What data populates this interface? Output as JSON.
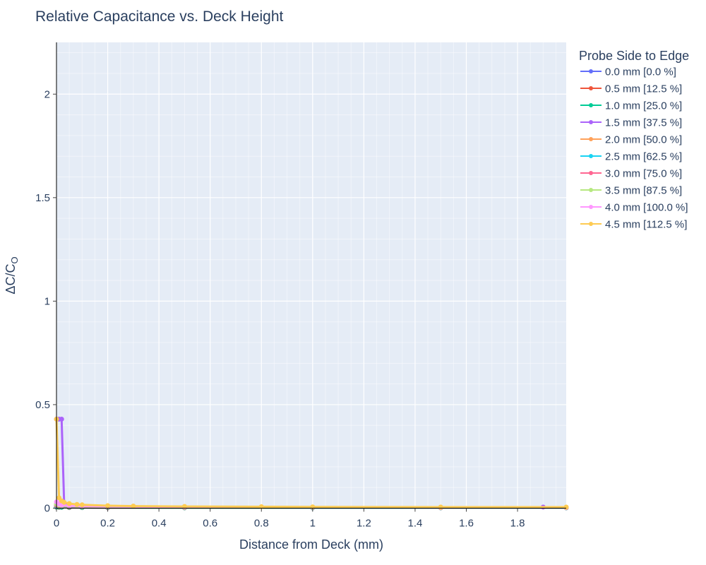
{
  "chart_data": {
    "type": "line",
    "title": "Relative Capacitance vs. Deck Height",
    "xlabel": "Distance from Deck (mm)",
    "ylabel": "ΔC/C",
    "ylabel_subscript": "O",
    "xlim": [
      0,
      1.99
    ],
    "ylim": [
      0,
      2.25
    ],
    "x_ticks": [
      0,
      0.2,
      0.4,
      0.6,
      0.8,
      1,
      1.2,
      1.4,
      1.6,
      1.8
    ],
    "x_tick_labels": [
      "0",
      "0.2",
      "0.4",
      "0.6",
      "0.8",
      "1",
      "1.2",
      "1.4",
      "1.6",
      "1.8"
    ],
    "y_ticks": [
      0,
      0.5,
      1,
      1.5,
      2
    ],
    "y_tick_labels": [
      "0",
      "0.5",
      "1",
      "1.5",
      "2"
    ],
    "grid": true,
    "legend_title": "Probe Side to Edge",
    "legend_position": "right",
    "series": [
      {
        "name": "0.0 mm [0.0 %]",
        "color": "#636efa",
        "x": [
          0,
          0.01,
          0.02,
          0.05,
          0.1,
          0.2,
          0.5,
          1,
          1.5,
          1.99
        ],
        "y": [
          0.005,
          0.004,
          0.004,
          0.003,
          0.003,
          0.002,
          0.002,
          0.002,
          0.002,
          0.002
        ]
      },
      {
        "name": "0.5 mm [12.5 %]",
        "color": "#ef553b",
        "x": [
          0,
          0.01,
          0.02,
          0.05,
          0.1,
          0.2,
          0.5,
          1,
          1.5,
          1.99
        ],
        "y": [
          0.005,
          0.004,
          0.004,
          0.003,
          0.003,
          0.002,
          0.002,
          0.002,
          0.002,
          0.002
        ]
      },
      {
        "name": "1.0 mm [25.0 %]",
        "color": "#00cc96",
        "x": [
          0,
          0.01,
          0.02,
          0.05,
          0.1,
          0.2,
          0.5,
          1,
          1.5,
          1.99
        ],
        "y": [
          0.006,
          0.005,
          0.004,
          0.004,
          0.003,
          0.003,
          0.002,
          0.002,
          0.002,
          0.002
        ]
      },
      {
        "name": "1.5 mm [37.5 %]",
        "color": "#ab63fa",
        "x": [
          0,
          0.01,
          0.02,
          0.03,
          0.05,
          0.1,
          0.2,
          0.5,
          1,
          1.5,
          1.9,
          1.99
        ],
        "y": [
          0.43,
          0.43,
          0.43,
          0.02,
          0.012,
          0.008,
          0.006,
          0.004,
          0.003,
          0.003,
          0.005,
          0.003
        ]
      },
      {
        "name": "2.0 mm [50.0 %]",
        "color": "#ffa15a",
        "x": [
          0,
          0.01,
          0.02,
          0.05,
          0.1,
          0.2,
          0.5,
          1,
          1.5,
          1.99
        ],
        "y": [
          0.01,
          0.008,
          0.007,
          0.006,
          0.005,
          0.004,
          0.003,
          0.003,
          0.003,
          0.003
        ]
      },
      {
        "name": "2.5 mm [62.5 %]",
        "color": "#19d3f3",
        "x": [
          0,
          0.01,
          0.02,
          0.05,
          0.1,
          0.2,
          0.5,
          1,
          1.5,
          1.99
        ],
        "y": [
          0.012,
          0.01,
          0.008,
          0.007,
          0.006,
          0.005,
          0.004,
          0.003,
          0.003,
          0.003
        ]
      },
      {
        "name": "3.0 mm [75.0 %]",
        "color": "#ff6692",
        "x": [
          0,
          0.01,
          0.02,
          0.05,
          0.1,
          0.2,
          0.5,
          1,
          1.5,
          1.99
        ],
        "y": [
          0.015,
          0.012,
          0.01,
          0.008,
          0.007,
          0.006,
          0.005,
          0.004,
          0.003,
          0.003
        ]
      },
      {
        "name": "3.5 mm [87.5 %]",
        "color": "#b6e880",
        "x": [
          0,
          0.01,
          0.02,
          0.05,
          0.1,
          0.2,
          0.5,
          1,
          1.5,
          1.99
        ],
        "y": [
          0.02,
          0.015,
          0.012,
          0.01,
          0.008,
          0.007,
          0.006,
          0.005,
          0.004,
          0.004
        ]
      },
      {
        "name": "4.0 mm [100.0 %]",
        "color": "#ff97ff",
        "x": [
          0,
          0.01,
          0.02,
          0.05,
          0.1,
          0.2,
          0.5,
          1,
          1.5,
          1.99
        ],
        "y": [
          0.03,
          0.02,
          0.015,
          0.012,
          0.01,
          0.008,
          0.006,
          0.005,
          0.004,
          0.004
        ]
      },
      {
        "name": "4.5 mm [112.5 %]",
        "color": "#fecb52",
        "x": [
          0,
          0.01,
          0.02,
          0.03,
          0.05,
          0.08,
          0.1,
          0.2,
          0.3,
          0.5,
          0.8,
          1,
          1.5,
          1.99
        ],
        "y": [
          0.43,
          0.05,
          0.035,
          0.028,
          0.022,
          0.018,
          0.016,
          0.012,
          0.01,
          0.008,
          0.007,
          0.006,
          0.005,
          0.005
        ]
      }
    ]
  }
}
